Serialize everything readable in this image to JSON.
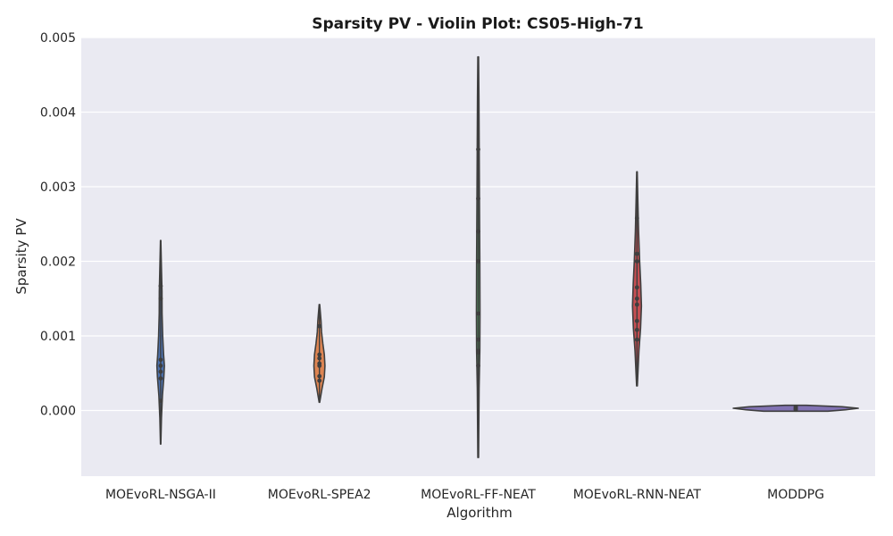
{
  "chart_data": {
    "type": "violin",
    "title": "Sparsity PV - Violin Plot: CS05-High-71",
    "xlabel": "Algorithm",
    "ylabel": "Sparsity PV",
    "ylim": [
      -0.00088,
      0.005
    ],
    "yticks": [
      "0.000",
      "0.001",
      "0.002",
      "0.003",
      "0.004",
      "0.005"
    ],
    "ytick_values": [
      0,
      0.001,
      0.002,
      0.003,
      0.004,
      0.005
    ],
    "grid": true,
    "background": "#eaeaf2",
    "categories": [
      "MOEvoRL-NSGA-II",
      "MOEvoRL-SPEA2",
      "MOEvoRL-FF-NEAT",
      "MOEvoRL-RNN-NEAT",
      "MODDPG"
    ],
    "series": [
      {
        "color": "#4c72b0",
        "points": [
          0.00167,
          0.0015,
          0.00068,
          0.0006,
          0.00052,
          0.00043,
          0.00013
        ],
        "kde_min": -0.00045,
        "kde_max": 0.00228,
        "profile": [
          [
            -0.00045,
            0.2
          ],
          [
            -0.0001,
            0.9
          ],
          [
            0.0002,
            2.0
          ],
          [
            0.00045,
            3.6
          ],
          [
            0.0006,
            4.2
          ],
          [
            0.00075,
            3.3
          ],
          [
            0.001,
            2.3
          ],
          [
            0.0013,
            1.6
          ],
          [
            0.0016,
            1.5
          ],
          [
            0.00185,
            1.0
          ],
          [
            0.00228,
            0.2
          ]
        ]
      },
      {
        "color": "#dd8452",
        "points": [
          0.00113,
          0.00075,
          0.0007,
          0.00063,
          0.0006,
          0.00046,
          0.0004
        ],
        "kde_min": 0.00011,
        "kde_max": 0.00142,
        "profile": [
          [
            0.00011,
            0.3
          ],
          [
            0.0003,
            3.0
          ],
          [
            0.00045,
            5.5
          ],
          [
            0.0006,
            6.2
          ],
          [
            0.00075,
            5.5
          ],
          [
            0.0009,
            3.8
          ],
          [
            0.00105,
            2.4
          ],
          [
            0.0012,
            1.8
          ],
          [
            0.00142,
            0.3
          ]
        ]
      },
      {
        "color": "#55a868",
        "points": [
          0.0035,
          0.00284,
          0.0024,
          0.002,
          0.0013,
          0.00095,
          0.0008,
          0.00078,
          0.0006
        ],
        "kde_min": -0.00063,
        "kde_max": 0.00474,
        "profile": [
          [
            -0.00063,
            0.4
          ],
          [
            0.0003,
            1.0
          ],
          [
            0.0008,
            1.8
          ],
          [
            0.0013,
            2.0
          ],
          [
            0.002,
            1.8
          ],
          [
            0.0028,
            1.4
          ],
          [
            0.0035,
            1.1
          ],
          [
            0.0042,
            0.8
          ],
          [
            0.00474,
            0.4
          ]
        ]
      },
      {
        "color": "#c44e52",
        "points": [
          0.00258,
          0.0021,
          0.002,
          0.00165,
          0.0015,
          0.00142,
          0.0012,
          0.00108,
          0.00095
        ],
        "kde_min": 0.00033,
        "kde_max": 0.0032,
        "profile": [
          [
            0.00033,
            0.4
          ],
          [
            0.0008,
            2.2
          ],
          [
            0.0011,
            4.0
          ],
          [
            0.0014,
            5.0
          ],
          [
            0.0017,
            4.2
          ],
          [
            0.002,
            3.0
          ],
          [
            0.0024,
            1.8
          ],
          [
            0.0028,
            1.0
          ],
          [
            0.0032,
            0.3
          ]
        ]
      },
      {
        "color": "#8172b3",
        "points": [
          5e-05,
          4e-05,
          3e-05,
          2e-05,
          1.5e-05,
          1e-05
        ],
        "kde_min": -1e-05,
        "kde_max": 7e-05,
        "profile": [
          [
            -1e-05,
            36
          ],
          [
            1e-05,
            56
          ],
          [
            3e-05,
            70
          ],
          [
            5e-05,
            52
          ],
          [
            7e-05,
            12
          ]
        ]
      }
    ]
  }
}
